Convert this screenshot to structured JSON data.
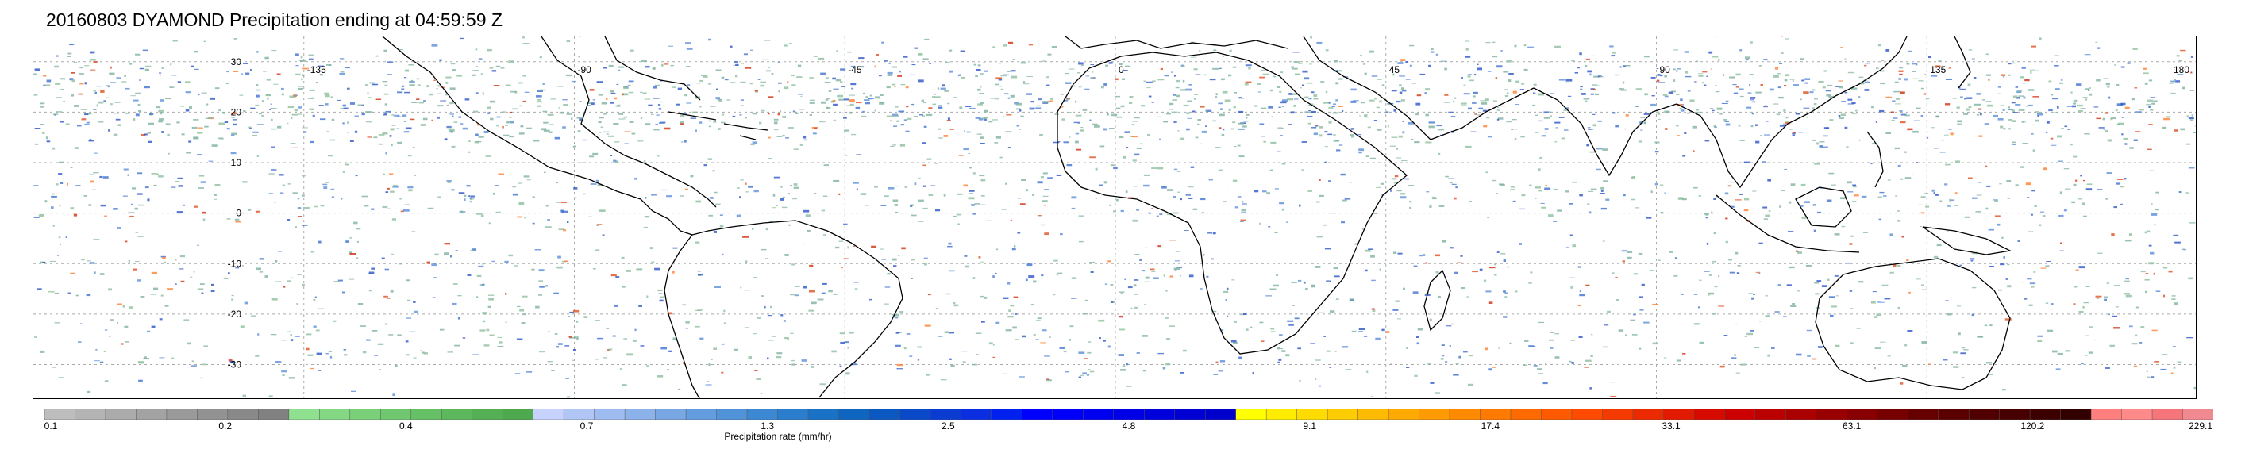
{
  "title": "20160803 DYAMOND Precipitation ending at 04:59:59 Z",
  "map": {
    "lat_ticks": [
      "30",
      "20",
      "10",
      "0",
      "-10",
      "-20",
      "-30"
    ],
    "lat_values": [
      30,
      20,
      10,
      0,
      -10,
      -20,
      -30
    ],
    "lon_ticks": [
      "-135",
      "-90",
      "-45",
      "0",
      "45",
      "90",
      "135",
      "180"
    ],
    "lon_values": [
      -135,
      -90,
      -45,
      0,
      45,
      90,
      135,
      180
    ],
    "lon_range": [
      -180,
      180
    ],
    "lat_range": [
      -37,
      35
    ],
    "gridlines": "dashed"
  },
  "colorbar": {
    "label": "Precipitation rate (mm/hr)",
    "tick_labels": [
      "0.1",
      "0.2",
      "0.4",
      "0.7",
      "1.3",
      "2.5",
      "4.8",
      "9.1",
      "17.4",
      "33.1",
      "63.1",
      "120.2",
      "229.1"
    ],
    "colors": [
      "#bdbdbd",
      "#b4b4b4",
      "#ababab",
      "#a3a3a3",
      "#9a9a9a",
      "#929292",
      "#898989",
      "#818181",
      "#8fe08f",
      "#84d884",
      "#79d079",
      "#6fc86f",
      "#66c066",
      "#5db85d",
      "#55b055",
      "#4ea84e",
      "#c8d2ff",
      "#b2c6f6",
      "#9fbcf0",
      "#8cb2ea",
      "#78a7e4",
      "#649ddf",
      "#5193d9",
      "#3d88d3",
      "#2a7ecd",
      "#1a72c6",
      "#0f66c0",
      "#0b58c2",
      "#0a4ac9",
      "#0b3cd2",
      "#0a2ee0",
      "#0020f0",
      "#0000ff",
      "#0000fa",
      "#0000f0",
      "#0000e6",
      "#0000dc",
      "#0000d4",
      "#0000cc",
      "#ffff00",
      "#ffec00",
      "#ffdc00",
      "#ffcc00",
      "#ffbb00",
      "#ffaa00",
      "#ff9a00",
      "#ff8a00",
      "#ff7a00",
      "#ff6a00",
      "#ff5a00",
      "#ff4a00",
      "#f53a00",
      "#eb2a00",
      "#e11a00",
      "#d70a00",
      "#cc0000",
      "#bb0000",
      "#aa0000",
      "#990000",
      "#880000",
      "#770000",
      "#660000",
      "#5a0000",
      "#500000",
      "#460000",
      "#3c0000",
      "#330000",
      "#ff7f7f",
      "#ff8a8a",
      "#f5757a",
      "#f08a90"
    ]
  }
}
